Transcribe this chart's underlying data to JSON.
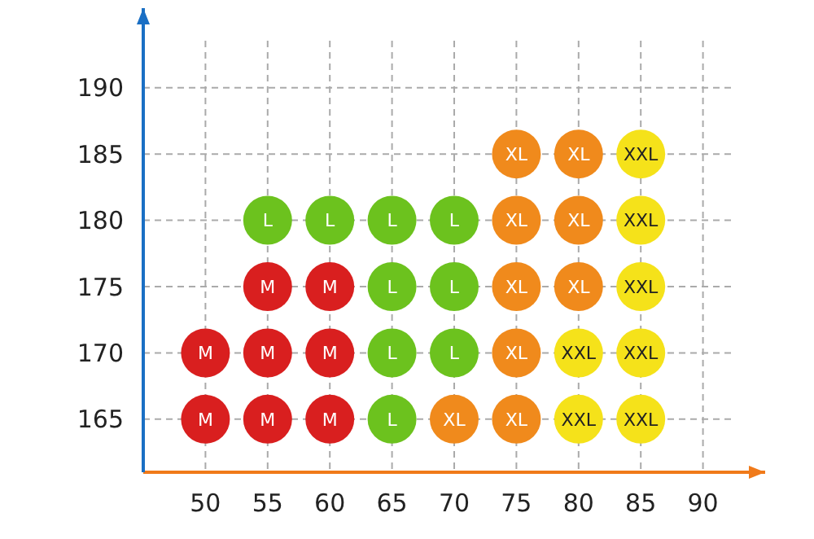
{
  "chart_data": {
    "type": "scatter",
    "xlim": [
      45,
      95
    ],
    "ylim": [
      161,
      196
    ],
    "xticks": [
      50,
      55,
      60,
      65,
      70,
      75,
      80,
      85,
      90
    ],
    "yticks": [
      165,
      170,
      175,
      180,
      185,
      190
    ],
    "grid": true,
    "line_style": "dashed",
    "legend": false,
    "marker": "circle",
    "series": [
      {
        "name": "M",
        "color": "#d91f1f",
        "x": [
          50,
          55,
          60,
          50,
          55,
          60,
          55,
          60
        ],
        "values": [
          165,
          165,
          165,
          170,
          170,
          170,
          175,
          175
        ]
      },
      {
        "name": "L",
        "color": "#6cc21e",
        "x": [
          65,
          65,
          70,
          65,
          70,
          55,
          60,
          65,
          70
        ],
        "values": [
          165,
          170,
          170,
          175,
          175,
          180,
          180,
          180,
          180
        ]
      },
      {
        "name": "XL",
        "color": "#f08a1c",
        "x": [
          70,
          75,
          75,
          75,
          80,
          75,
          80,
          75,
          80
        ],
        "values": [
          165,
          165,
          170,
          175,
          175,
          180,
          180,
          185,
          185
        ]
      },
      {
        "name": "XXL",
        "color": "#f5e21a",
        "x": [
          80,
          85,
          80,
          85,
          85,
          85,
          85
        ],
        "values": [
          165,
          165,
          170,
          170,
          175,
          180,
          185
        ]
      }
    ]
  }
}
